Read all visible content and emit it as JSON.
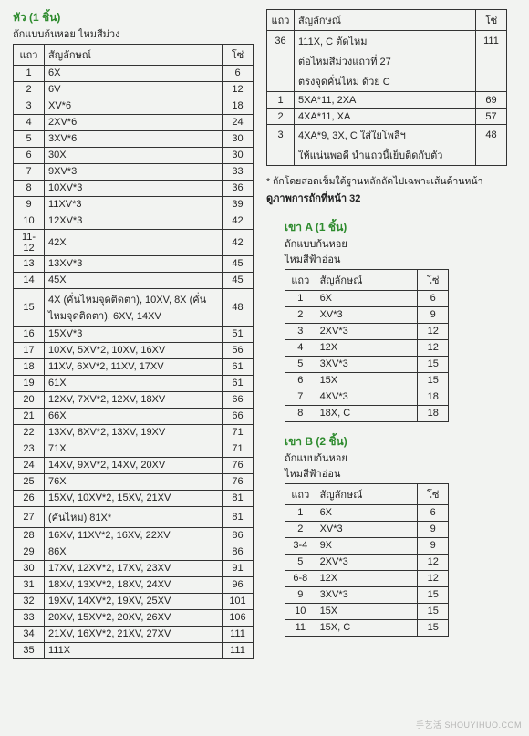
{
  "headers": {
    "row": "แถว",
    "symbol": "สัญลักษณ์",
    "chain": "โซ่"
  },
  "left": {
    "title": "หัว (1 ชิ้น)",
    "sub": "ถักแบบก้นหอย  ไหมสีม่วง",
    "rows": [
      {
        "r": "1",
        "s": "6X",
        "c": "6"
      },
      {
        "r": "2",
        "s": "6V",
        "c": "12"
      },
      {
        "r": "3",
        "s": "XV*6",
        "c": "18"
      },
      {
        "r": "4",
        "s": "2XV*6",
        "c": "24"
      },
      {
        "r": "5",
        "s": "3XV*6",
        "c": "30"
      },
      {
        "r": "6",
        "s": "30X",
        "c": "30"
      },
      {
        "r": "7",
        "s": "9XV*3",
        "c": "33"
      },
      {
        "r": "8",
        "s": "10XV*3",
        "c": "36"
      },
      {
        "r": "9",
        "s": "11XV*3",
        "c": "39"
      },
      {
        "r": "10",
        "s": "12XV*3",
        "c": "42"
      },
      {
        "r": "11-12",
        "s": "42X",
        "c": "42"
      },
      {
        "r": "13",
        "s": "13XV*3",
        "c": "45"
      },
      {
        "r": "14",
        "s": "45X",
        "c": "45"
      },
      {
        "r": "15",
        "s": "4X (คั่นไหมจุดติดตา), 10XV, 8X (คั่นไหมจุดติดตา), 6XV, 14XV",
        "c": "48"
      },
      {
        "r": "16",
        "s": "15XV*3",
        "c": "51"
      },
      {
        "r": "17",
        "s": "10XV, 5XV*2, 10XV, 16XV",
        "c": "56"
      },
      {
        "r": "18",
        "s": "11XV, 6XV*2, 11XV, 17XV",
        "c": "61"
      },
      {
        "r": "19",
        "s": "61X",
        "c": "61"
      },
      {
        "r": "20",
        "s": "12XV, 7XV*2, 12XV, 18XV",
        "c": "66"
      },
      {
        "r": "21",
        "s": "66X",
        "c": "66"
      },
      {
        "r": "22",
        "s": "13XV, 8XV*2, 13XV, 19XV",
        "c": "71"
      },
      {
        "r": "23",
        "s": "71X",
        "c": "71"
      },
      {
        "r": "24",
        "s": "14XV, 9XV*2, 14XV, 20XV",
        "c": "76"
      },
      {
        "r": "25",
        "s": "76X",
        "c": "76"
      },
      {
        "r": "26",
        "s": "15XV, 10XV*2, 15XV, 21XV",
        "c": "81"
      },
      {
        "r": "27",
        "s": "(คั่นไหม) 81X*",
        "c": "81"
      },
      {
        "r": "28",
        "s": "16XV, 11XV*2, 16XV, 22XV",
        "c": "86"
      },
      {
        "r": "29",
        "s": "86X",
        "c": "86"
      },
      {
        "r": "30",
        "s": "17XV, 12XV*2, 17XV, 23XV",
        "c": "91"
      },
      {
        "r": "31",
        "s": "18XV, 13XV*2, 18XV, 24XV",
        "c": "96"
      },
      {
        "r": "32",
        "s": "19XV, 14XV*2, 19XV, 25XV",
        "c": "101"
      },
      {
        "r": "33",
        "s": "20XV, 15XV*2, 20XV, 26XV",
        "c": "106"
      },
      {
        "r": "34",
        "s": "21XV, 16XV*2, 21XV, 27XV",
        "c": "111"
      },
      {
        "r": "35",
        "s": "111X",
        "c": "111"
      }
    ]
  },
  "topRight": {
    "rows_a": [
      {
        "r": "36",
        "s": "111X, C ตัดไหม",
        "c": "111"
      },
      {
        "r": "",
        "s": "ต่อไหมสีม่วงแถวที่ 27",
        "c": ""
      },
      {
        "r": "",
        "s": "ตรงจุดคั่นไหม ด้วย C",
        "c": ""
      }
    ],
    "rows_b": [
      {
        "r": "1",
        "s": "5XA*11, 2XA",
        "c": "69"
      },
      {
        "r": "2",
        "s": "4XA*11, XA",
        "c": "57"
      },
      {
        "r": "3",
        "s": "4XA*9, 3X, C ใส่ใยโพลีฯ",
        "c": "48"
      },
      {
        "r": "",
        "s": "ให้แน่นพอดี นำแถวนี้เย็บติดกับตัว",
        "c": ""
      }
    ],
    "note_star": "* ถักโดยสอดเข็มใต้ฐานหลักถัดไปเฉพาะเส้นด้านหน้า",
    "note_bold": "ดูภาพการถักที่หน้า 32"
  },
  "legA": {
    "title": "เขา A (1 ชิ้น)",
    "sub1": "ถักแบบก้นหอย",
    "sub2": "ไหมสีฟ้าอ่อน",
    "rows": [
      {
        "r": "1",
        "s": "6X",
        "c": "6"
      },
      {
        "r": "2",
        "s": "XV*3",
        "c": "9"
      },
      {
        "r": "3",
        "s": "2XV*3",
        "c": "12"
      },
      {
        "r": "4",
        "s": "12X",
        "c": "12"
      },
      {
        "r": "5",
        "s": "3XV*3",
        "c": "15"
      },
      {
        "r": "6",
        "s": "15X",
        "c": "15"
      },
      {
        "r": "7",
        "s": "4XV*3",
        "c": "18"
      },
      {
        "r": "8",
        "s": "18X, C",
        "c": "18"
      }
    ]
  },
  "legB": {
    "title": "เขา B (2 ชิ้น)",
    "sub1": "ถักแบบก้นหอย",
    "sub2": "ไหมสีฟ้าอ่อน",
    "rows": [
      {
        "r": "1",
        "s": "6X",
        "c": "6"
      },
      {
        "r": "2",
        "s": "XV*3",
        "c": "9"
      },
      {
        "r": "3-4",
        "s": "9X",
        "c": "9"
      },
      {
        "r": "5",
        "s": "2XV*3",
        "c": "12"
      },
      {
        "r": "6-8",
        "s": "12X",
        "c": "12"
      },
      {
        "r": "9",
        "s": "3XV*3",
        "c": "15"
      },
      {
        "r": "10",
        "s": "15X",
        "c": "15"
      },
      {
        "r": "11",
        "s": "15X, C",
        "c": "15"
      }
    ]
  },
  "watermark": "手艺活  SHOUYIHUO.COM"
}
